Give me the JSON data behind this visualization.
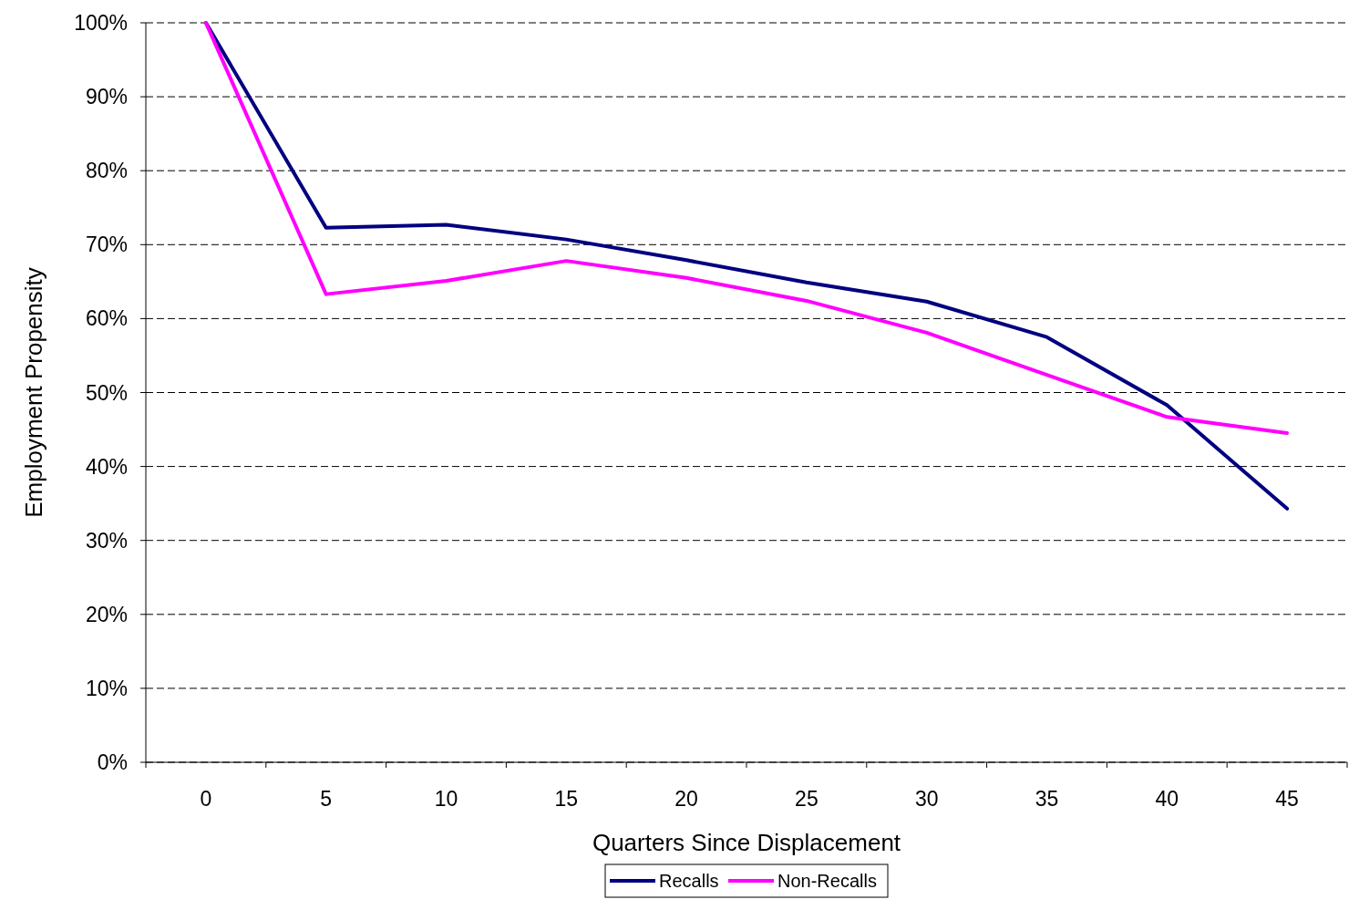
{
  "chart_data": {
    "type": "line",
    "xlabel": "Quarters Since Displacement",
    "ylabel": "Employment Propensity",
    "categories": [
      "0",
      "5",
      "10",
      "15",
      "20",
      "25",
      "30",
      "35",
      "40",
      "45"
    ],
    "series": [
      {
        "name": "Recalls",
        "color": "#000080",
        "values": [
          100,
          72.3,
          72.7,
          70.7,
          67.9,
          64.9,
          62.3,
          57.5,
          48.3,
          34.3
        ]
      },
      {
        "name": "Non-Recalls",
        "color": "#ff00ff",
        "values": [
          100,
          63.3,
          65.1,
          67.8,
          65.5,
          62.4,
          58.1,
          52.4,
          46.7,
          44.5
        ]
      }
    ],
    "ylim": [
      0,
      100
    ],
    "yticks": [
      {
        "value": 0,
        "label": "0%"
      },
      {
        "value": 10,
        "label": "10%"
      },
      {
        "value": 20,
        "label": "20%"
      },
      {
        "value": 30,
        "label": "30%"
      },
      {
        "value": 40,
        "label": "40%"
      },
      {
        "value": 50,
        "label": "50%"
      },
      {
        "value": 60,
        "label": "60%"
      },
      {
        "value": 70,
        "label": "70%"
      },
      {
        "value": 80,
        "label": "80%"
      },
      {
        "value": 90,
        "label": "90%"
      },
      {
        "value": 100,
        "label": "100%"
      }
    ],
    "grid": "y",
    "legend": "bottom",
    "line_style": "solid"
  }
}
